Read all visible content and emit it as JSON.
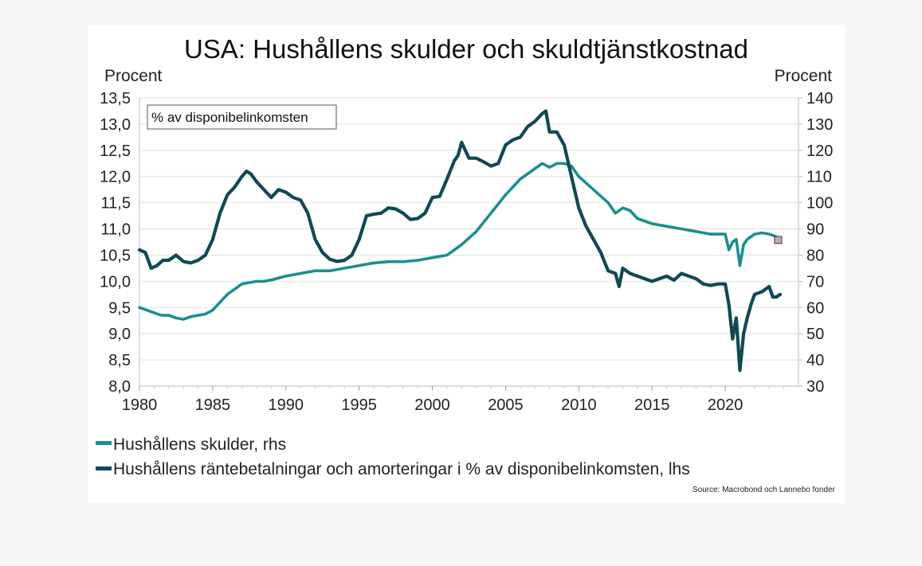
{
  "chart_data": {
    "type": "line",
    "title": "USA: Hushållens skulder och skuldtjänstkostnad",
    "left_axis_label": "Procent",
    "right_axis_label": "Procent",
    "annotation": "% av disponibelinkomsten",
    "source": "Source: Macrobond och Lannebo fonder",
    "grid": true,
    "legend_position": "bottom",
    "xlim": [
      1980,
      2025
    ],
    "ylim_left": [
      8.0,
      13.5
    ],
    "ylim_right": [
      30,
      140
    ],
    "x_ticks": [
      "1980",
      "1985",
      "1990",
      "1995",
      "2000",
      "2005",
      "2010",
      "2015",
      "2020"
    ],
    "y_ticks_left": [
      "8,0",
      "8,5",
      "9,0",
      "9,5",
      "10,0",
      "10,5",
      "11,0",
      "11,5",
      "12,0",
      "12,5",
      "13,0",
      "13,5"
    ],
    "y_ticks_right": [
      "30",
      "40",
      "50",
      "60",
      "70",
      "80",
      "90",
      "100",
      "110",
      "120",
      "130",
      "140"
    ],
    "series": [
      {
        "name": "Hushållens skulder, rhs",
        "axis": "right",
        "color": "#1a8f8f",
        "x": [
          1980,
          1980.5,
          1981,
          1981.5,
          1982,
          1982.5,
          1983,
          1983.5,
          1984,
          1984.5,
          1985,
          1985.5,
          1986,
          1986.5,
          1987,
          1987.5,
          1988,
          1988.5,
          1989,
          1990,
          1991,
          1992,
          1993,
          1994,
          1995,
          1996,
          1997,
          1998,
          1999,
          2000,
          2001,
          2002,
          2003,
          2004,
          2005,
          2006,
          2007,
          2007.5,
          2008,
          2008.5,
          2009,
          2009.5,
          2010,
          2011,
          2012,
          2012.5,
          2013,
          2013.5,
          2014,
          2015,
          2016,
          2017,
          2018,
          2019,
          2019.5,
          2020,
          2020.25,
          2020.5,
          2020.75,
          2021,
          2021.25,
          2021.5,
          2022,
          2022.5,
          2023,
          2023.5
        ],
        "values": [
          60,
          59,
          58,
          57,
          57,
          56,
          55.5,
          56.5,
          57,
          57.5,
          59,
          62,
          65,
          67,
          69,
          69.5,
          70,
          70,
          70.5,
          72,
          73,
          74,
          74,
          75,
          76,
          77,
          77.5,
          77.5,
          78,
          79,
          80,
          84,
          89,
          96,
          103,
          109,
          113,
          115,
          113.5,
          115,
          115,
          114,
          110,
          105,
          100,
          96,
          98,
          97,
          94,
          92,
          91,
          90,
          89,
          88,
          88,
          88,
          82,
          85,
          86,
          76,
          84,
          86,
          88,
          88.5,
          88,
          87
        ]
      },
      {
        "name": "Hushållens räntebetalningar och amorteringar i % av disponibelinkomsten, lhs",
        "axis": "left",
        "color": "#0e4a55",
        "x": [
          1980,
          1980.4,
          1980.8,
          1981.2,
          1981.6,
          1982,
          1982.5,
          1983,
          1983.5,
          1984,
          1984.5,
          1985,
          1985.5,
          1986,
          1986.5,
          1987,
          1987.3,
          1987.6,
          1988,
          1988.5,
          1989,
          1989.5,
          1990,
          1990.5,
          1991,
          1991.5,
          1992,
          1992.5,
          1993,
          1993.5,
          1994,
          1994.5,
          1995,
          1995.5,
          1996,
          1996.5,
          1997,
          1997.5,
          1998,
          1998.5,
          1999,
          1999.5,
          2000,
          2000.5,
          2001,
          2001.5,
          2001.75,
          2002,
          2002.5,
          2003,
          2003.5,
          2004,
          2004.5,
          2005,
          2005.5,
          2006,
          2006.5,
          2007,
          2007.5,
          2007.75,
          2008,
          2008.5,
          2009,
          2009.5,
          2010,
          2010.5,
          2011,
          2011.5,
          2012,
          2012.5,
          2012.75,
          2013,
          2013.5,
          2014,
          2014.5,
          2015,
          2015.5,
          2016,
          2016.5,
          2017,
          2017.5,
          2018,
          2018.5,
          2019,
          2019.5,
          2020,
          2020.25,
          2020.5,
          2020.75,
          2021,
          2021.25,
          2021.5,
          2021.75,
          2022,
          2022.5,
          2023,
          2023.25,
          2023.5,
          2023.75
        ],
        "values": [
          10.6,
          10.55,
          10.25,
          10.3,
          10.4,
          10.4,
          10.5,
          10.38,
          10.35,
          10.4,
          10.5,
          10.8,
          11.3,
          11.65,
          11.8,
          12.0,
          12.1,
          12.05,
          11.9,
          11.75,
          11.6,
          11.75,
          11.7,
          11.6,
          11.55,
          11.3,
          10.8,
          10.55,
          10.42,
          10.38,
          10.4,
          10.5,
          10.8,
          11.25,
          11.28,
          11.3,
          11.4,
          11.38,
          11.3,
          11.18,
          11.2,
          11.3,
          11.6,
          11.62,
          11.95,
          12.3,
          12.4,
          12.65,
          12.35,
          12.35,
          12.28,
          12.2,
          12.25,
          12.6,
          12.7,
          12.75,
          12.95,
          13.05,
          13.2,
          13.25,
          12.85,
          12.85,
          12.6,
          12.0,
          11.4,
          11.05,
          10.8,
          10.55,
          10.2,
          10.15,
          9.9,
          10.25,
          10.15,
          10.1,
          10.05,
          10.0,
          10.05,
          10.1,
          10.02,
          10.15,
          10.1,
          10.05,
          9.95,
          9.92,
          9.95,
          9.95,
          9.55,
          8.9,
          9.3,
          8.3,
          9.0,
          9.3,
          9.55,
          9.75,
          9.8,
          9.9,
          9.7,
          9.7,
          9.75
        ]
      }
    ]
  }
}
